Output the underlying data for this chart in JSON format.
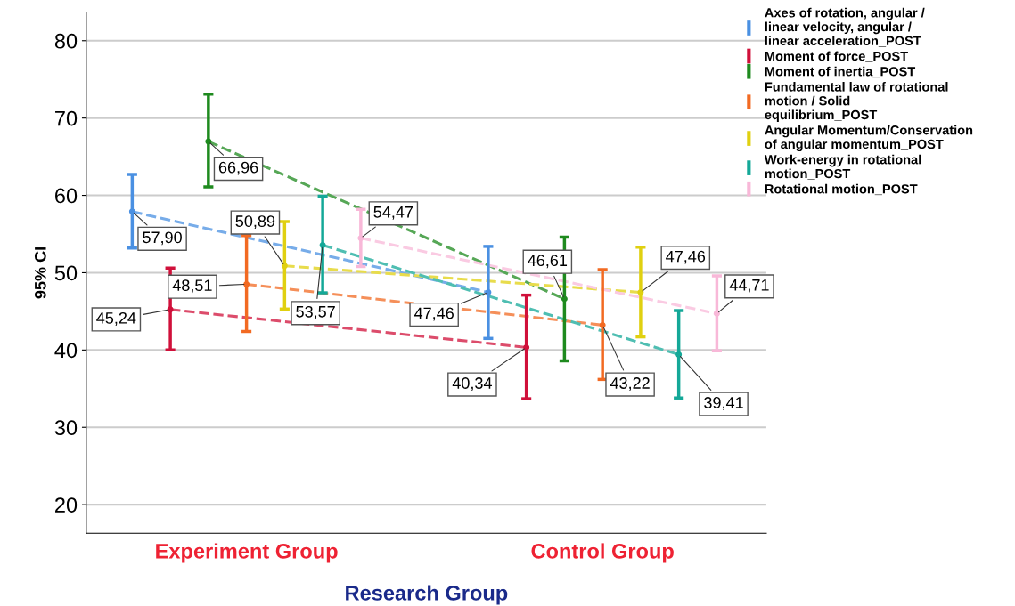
{
  "chart_data": {
    "type": "line",
    "ylabel": "95% CI",
    "xlabel": "Research Group",
    "categories": [
      "Experiment Group",
      "Control Group"
    ],
    "ylim": [
      16.3,
      83.7
    ],
    "yticks": [
      20,
      30,
      40,
      50,
      60,
      70,
      80
    ],
    "grid": "y",
    "legend": "top right",
    "marker": "circle",
    "line_style": "dashed",
    "series": [
      {
        "name": "Axes of rotation, angular / linear velocity, angular / linear acceleration_POST",
        "color": "#4a90e2",
        "values": [
          57.9,
          47.46
        ],
        "errors": [
          [
            53.2,
            62.7
          ],
          [
            41.5,
            53.4
          ]
        ],
        "value_labels": [
          "57,90",
          "47,46"
        ]
      },
      {
        "name": "Moment of force_POST",
        "color": "#d0103a",
        "values": [
          45.24,
          40.34
        ],
        "errors": [
          [
            40.0,
            50.6
          ],
          [
            33.7,
            47.1
          ]
        ],
        "value_labels": [
          "45,24",
          "40,34"
        ]
      },
      {
        "name": "Moment of inertia_POST",
        "color": "#1e8a1e",
        "values": [
          66.96,
          46.61
        ],
        "errors": [
          [
            61.1,
            73.1
          ],
          [
            38.6,
            54.6
          ]
        ],
        "value_labels": [
          "66,96",
          "46,61"
        ]
      },
      {
        "name": "Fundamental law of rotational motion / Solid equilibrium_POST",
        "color": "#f26a22",
        "values": [
          48.51,
          43.22
        ],
        "errors": [
          [
            42.4,
            54.8
          ],
          [
            36.2,
            50.4
          ]
        ],
        "value_labels": [
          "48,51",
          "43,22"
        ]
      },
      {
        "name": "Angular Momentum/Conservation of angular momentum_POST",
        "color": "#e0d010",
        "values": [
          50.89,
          47.46
        ],
        "errors": [
          [
            45.3,
            56.6
          ],
          [
            41.7,
            53.3
          ]
        ],
        "value_labels": [
          "50,89",
          "47,46"
        ]
      },
      {
        "name": "Work-energy in rotational motion_POST",
        "color": "#14a898",
        "values": [
          53.57,
          39.41
        ],
        "errors": [
          [
            47.4,
            59.9
          ],
          [
            33.8,
            45.1
          ]
        ],
        "value_labels": [
          "53,57",
          "39,41"
        ]
      },
      {
        "name": "Rotational motion_POST",
        "color": "#f8b8d8",
        "values": [
          54.47,
          44.71
        ],
        "errors": [
          [
            50.8,
            58.2
          ],
          [
            39.9,
            49.6
          ]
        ],
        "value_labels": [
          "54,47",
          "44,71"
        ]
      }
    ]
  }
}
